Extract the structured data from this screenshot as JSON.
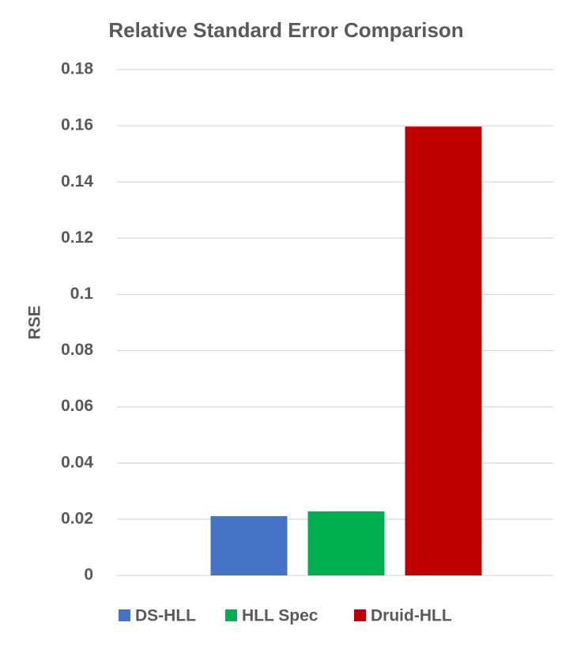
{
  "chart_data": {
    "type": "bar",
    "title": "Relative Standard Error Comparison",
    "y_label": "RSE",
    "categories": [
      null
    ],
    "series": [
      {
        "name": "DS-HLL",
        "color": "#4472c4",
        "values": [
          0.0211
        ]
      },
      {
        "name": "HLL Spec",
        "color": "#00b050",
        "values": [
          0.0228
        ]
      },
      {
        "name": "Druid-HLL",
        "color": "#c00000",
        "values": [
          0.1597
        ]
      }
    ],
    "ylim": [
      0,
      0.18
    ],
    "yticks": [
      0,
      0.02,
      0.04,
      0.06,
      0.08,
      0.1,
      0.12,
      0.14,
      0.16,
      0.18
    ],
    "grid": true,
    "legend": "bottom"
  }
}
